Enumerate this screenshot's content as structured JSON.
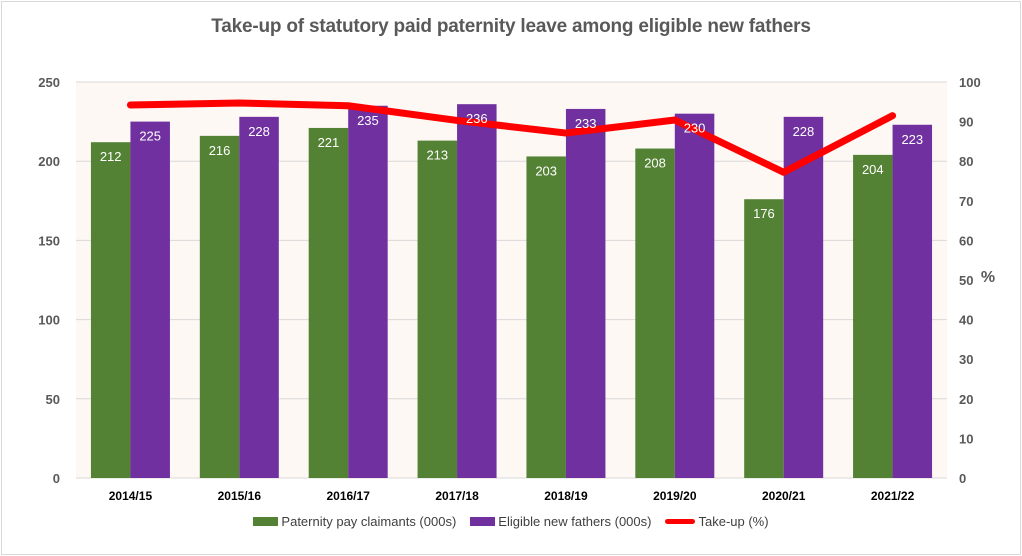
{
  "chart_data": {
    "type": "bar",
    "title": "Take-up of statutory paid paternity leave among eligible new fathers",
    "categories": [
      "2014/15",
      "2015/16",
      "2016/17",
      "2017/18",
      "2018/19",
      "2019/20",
      "2020/21",
      "2021/22"
    ],
    "series": [
      {
        "name": "Paternity pay claimants (000s)",
        "type": "bar",
        "axis": "left",
        "color": "#548235",
        "values": [
          212,
          216,
          221,
          213,
          203,
          208,
          176,
          204
        ]
      },
      {
        "name": "Eligible new fathers (000s)",
        "type": "bar",
        "axis": "left",
        "color": "#7030A0",
        "values": [
          225,
          228,
          235,
          236,
          233,
          230,
          228,
          223
        ]
      },
      {
        "name": "Take-up (%)",
        "type": "line",
        "axis": "right",
        "color": "#FF0000",
        "values": [
          94.2,
          94.7,
          94.0,
          90.3,
          87.1,
          90.4,
          77.2,
          91.5
        ]
      }
    ],
    "xlabel": "",
    "ylabel": "",
    "y2label": "%",
    "ylim": [
      0,
      250
    ],
    "y2lim": [
      0,
      100
    ],
    "yticks": [
      0,
      50,
      100,
      150,
      200,
      250
    ],
    "y2ticks": [
      0,
      10,
      20,
      30,
      40,
      50,
      60,
      70,
      80,
      90,
      100
    ],
    "grid": true,
    "legend": "bottom",
    "plot_background": "#FDF8F4",
    "data_labels": "bars-inside-top"
  }
}
